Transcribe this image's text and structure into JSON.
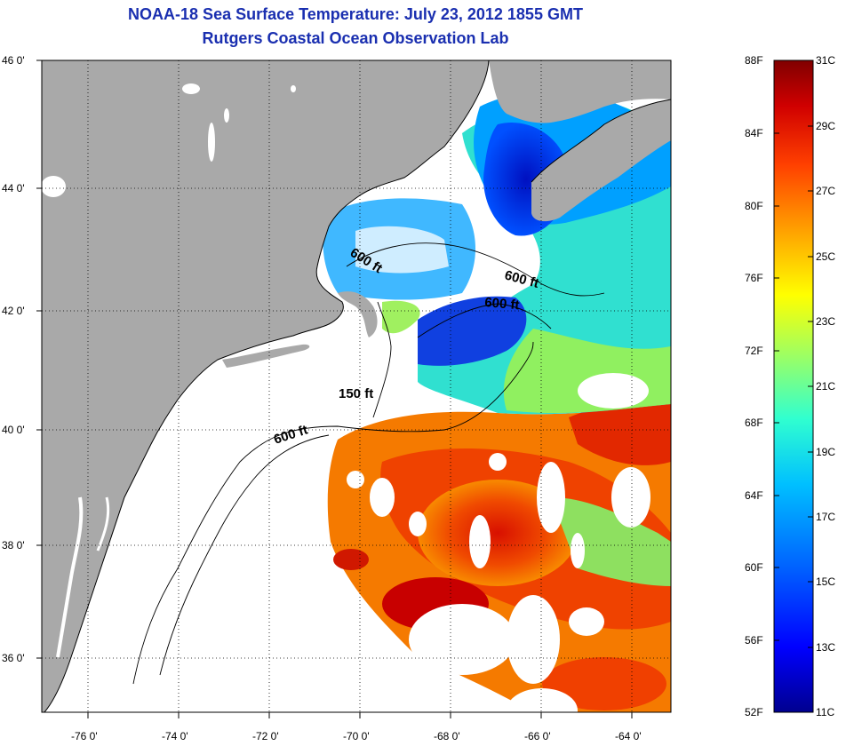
{
  "title": {
    "line1": "NOAA-18 Sea Surface Temperature:  July 23, 2012 1855 GMT",
    "line2": "Rutgers Coastal Ocean Observation Lab"
  },
  "map": {
    "lat_labels": [
      "46 0'",
      "44 0'",
      "42 0'",
      "40 0'",
      "38 0'",
      "36 0'"
    ],
    "lon_labels": [
      "-76 0'",
      "-74 0'",
      "-72 0'",
      "-70 0'",
      "-68 0'",
      "-66 0'",
      "-64 0'"
    ],
    "contour_labels": [
      "600 ft",
      "600 ft",
      "600 ft",
      "150 ft",
      "600 ft"
    ],
    "colors": {
      "land": "#a9a9a9",
      "no_data": "#ffffff",
      "coastline": "#000000"
    }
  },
  "colorbar": {
    "fahrenheit": [
      "88F",
      "84F",
      "80F",
      "76F",
      "72F",
      "68F",
      "64F",
      "60F",
      "56F",
      "52F"
    ],
    "celsius": [
      "31C",
      "29C",
      "27C",
      "25C",
      "23C",
      "21C",
      "19C",
      "17C",
      "15C",
      "13C",
      "11C"
    ],
    "gradient": [
      "#00008f",
      "#0000ff",
      "#0060ff",
      "#00c0ff",
      "#30ffd0",
      "#a0ff60",
      "#ffff00",
      "#ffa000",
      "#ff4000",
      "#d00000",
      "#800000"
    ]
  }
}
